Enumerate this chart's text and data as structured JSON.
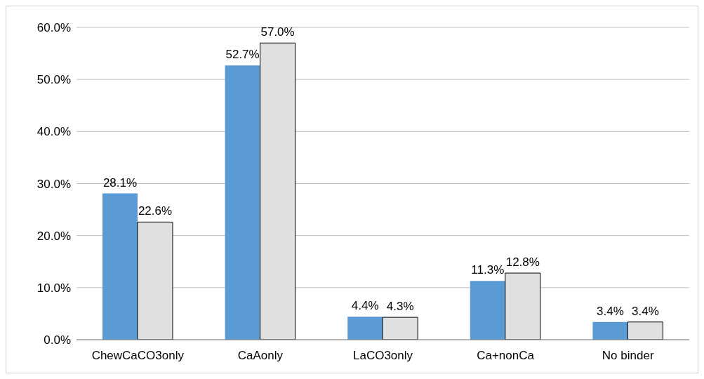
{
  "chart_data": {
    "type": "bar",
    "categories": [
      "ChewCaCO3only",
      "CaAonly",
      "LaCO3only",
      "Ca+nonCa",
      "No binder"
    ],
    "series": [
      {
        "color": "#5b9bd5",
        "values": [
          28.1,
          52.7,
          4.4,
          11.3,
          3.4
        ],
        "value_labels": [
          "28.1%",
          "52.7%",
          "4.4%",
          "11.3%",
          "3.4%"
        ]
      },
      {
        "color": "#e0e0e0",
        "values": [
          22.6,
          57.0,
          4.3,
          12.8,
          3.4
        ],
        "value_labels": [
          "22.6%",
          "57.0%",
          "4.3%",
          "12.8%",
          "3.4%"
        ]
      }
    ],
    "ylim": [
      0,
      60
    ],
    "yticks": [
      {
        "value": 0,
        "label": "0.0%"
      },
      {
        "value": 10,
        "label": "10.0%"
      },
      {
        "value": 20,
        "label": "20.0%"
      },
      {
        "value": 30,
        "label": "30.0%"
      },
      {
        "value": 40,
        "label": "40.0%"
      },
      {
        "value": 50,
        "label": "50.0%"
      },
      {
        "value": 60,
        "label": "60.0%"
      }
    ],
    "grid": "y",
    "legend": false
  }
}
